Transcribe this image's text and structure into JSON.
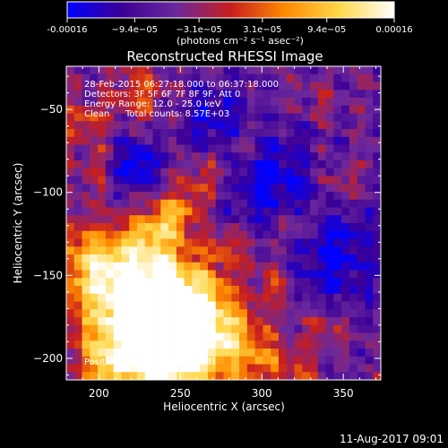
{
  "chart_data": {
    "type": "heatmap",
    "title": "Reconstructed RHESSI Image",
    "xlabel": "Heliocentric X (arcsec)",
    "ylabel": "Heliocentric Y (arcsec)",
    "xlim": [
      180,
      373
    ],
    "ylim": [
      -213,
      -24
    ],
    "x_ticks": [
      200,
      250,
      300,
      350
    ],
    "y_ticks": [
      -50,
      -100,
      -150,
      -200
    ],
    "colorbar": {
      "range": [
        -0.00016,
        0.00016
      ],
      "tick_values": [
        -0.00016,
        -9.4e-05,
        -3.1e-05,
        3.1e-05,
        9.4e-05,
        0.00016
      ],
      "tick_labels": [
        "-0.00016",
        "−9.4e−05",
        "−3.1e−05",
        "3.1e−05",
        "9.4e−05",
        "0.00016"
      ],
      "unit_label": "(photons cm⁻² s⁻¹ asec⁻²)",
      "colors": [
        "#0000ff",
        "#3c0096",
        "#6c289c",
        "#c81e1e",
        "#ff8a00",
        "#ffd84a",
        "#ffffff"
      ]
    },
    "annotations": [
      "28-Feb-2015 06:27:18.000 to 06:37:18.000",
      "Detectors: 3F 5F 6F 7F 8F 9F, Att 0",
      "Energy Range: 12.0 - 25.0 keV",
      "Clean",
      "Total counts: 8.57E+03"
    ],
    "peak_label": "Position of Peak = [243,-193]",
    "peak": [
      243,
      -193
    ],
    "grid_size": 40,
    "blobs": [
      {
        "x": 243,
        "y": -193,
        "sigma": 22,
        "amp": 1.25
      },
      {
        "x": 262,
        "y": -178,
        "sigma": 20,
        "amp": 0.75
      },
      {
        "x": 215,
        "y": -168,
        "sigma": 26,
        "amp": 0.8
      },
      {
        "x": 235,
        "y": -150,
        "sigma": 18,
        "amp": 0.55
      },
      {
        "x": 195,
        "y": -140,
        "sigma": 16,
        "amp": 0.5
      },
      {
        "x": 298,
        "y": -200,
        "sigma": 14,
        "amp": 0.45
      },
      {
        "x": 248,
        "y": -112,
        "sigma": 10,
        "amp": 0.55
      },
      {
        "x": 232,
        "y": -125,
        "sigma": 10,
        "amp": 0.4
      },
      {
        "x": 205,
        "y": -85,
        "sigma": 12,
        "amp": 0.45
      },
      {
        "x": 265,
        "y": -90,
        "sigma": 9,
        "amp": 0.35
      },
      {
        "x": 290,
        "y": -75,
        "sigma": 10,
        "amp": 0.3
      },
      {
        "x": 320,
        "y": -120,
        "sigma": 9,
        "amp": 0.3
      },
      {
        "x": 310,
        "y": -155,
        "sigma": 9,
        "amp": 0.3
      },
      {
        "x": 340,
        "y": -180,
        "sigma": 10,
        "amp": 0.28
      },
      {
        "x": 225,
        "y": -40,
        "sigma": 12,
        "amp": 0.4
      },
      {
        "x": 190,
        "y": -55,
        "sigma": 10,
        "amp": 0.35
      },
      {
        "x": 205,
        "y": -205,
        "sigma": 10,
        "amp": 0.5
      },
      {
        "x": 350,
        "y": -95,
        "sigma": 9,
        "amp": 0.22
      },
      {
        "x": 338,
        "y": -45,
        "sigma": 9,
        "amp": 0.2
      },
      {
        "x": 280,
        "y": -135,
        "sigma": 9,
        "amp": 0.28
      },
      {
        "x": 325,
        "y": -205,
        "sigma": 9,
        "amp": 0.25
      }
    ],
    "sinks": [
      {
        "x": 218,
        "y": -85,
        "sigma": 12,
        "amp": 0.7
      },
      {
        "x": 305,
        "y": -90,
        "sigma": 18,
        "amp": 0.55
      },
      {
        "x": 345,
        "y": -140,
        "sigma": 20,
        "amp": 0.45
      },
      {
        "x": 270,
        "y": -55,
        "sigma": 14,
        "amp": 0.4
      }
    ]
  },
  "footer": {
    "timestamp": "11-Aug-2017 09:01"
  }
}
